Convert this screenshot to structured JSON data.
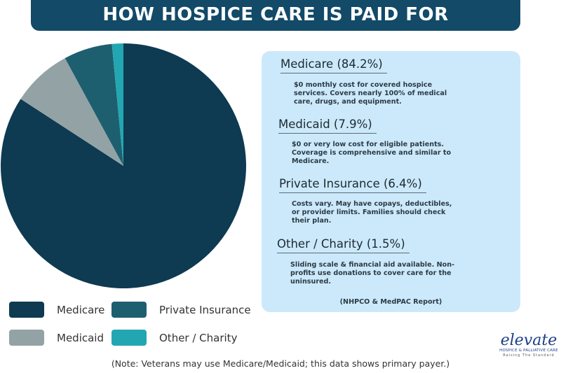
{
  "title": "HOW HOSPICE CARE IS PAID FOR",
  "chart_data": {
    "type": "pie",
    "title": "HOW HOSPICE CARE IS PAID FOR",
    "categories": [
      "Medicare",
      "Medicaid",
      "Private Insurance",
      "Other / Charity"
    ],
    "values": [
      84.2,
      7.9,
      6.4,
      1.5
    ],
    "colors": [
      "#0e3a52",
      "#93a3a5",
      "#1e5f6f",
      "#22a7b2"
    ],
    "start_angle": "top",
    "direction": "clockwise",
    "legend_position": "bottom-left"
  },
  "legend": [
    {
      "label": "Medicare",
      "color": "#0e3a52"
    },
    {
      "label": "Private Insurance",
      "color": "#1e5f6f"
    },
    {
      "label": "Medicaid",
      "color": "#93a3a5"
    },
    {
      "label": "Other / Charity",
      "color": "#22a7b2"
    }
  ],
  "panel": {
    "sections": [
      {
        "title": "Medicare (84.2%)",
        "desc": "$0 monthly cost for covered hospice services. Covers nearly 100% of medical care, drugs, and equipment."
      },
      {
        "title": "Medicaid (7.9%)",
        "desc": "$0 or very low cost for eligible patients. Coverage is comprehensive and similar to Medicare."
      },
      {
        "title": "Private Insurance (6.4%)",
        "desc": "Costs vary. May have copays, deductibles, or provider limits. Families should check their plan."
      },
      {
        "title": "Other / Charity (1.5%)",
        "desc": "Sliding scale & financial aid available. Non-profits use donations to cover care for the uninsured."
      }
    ],
    "source": "(NHPCO & MedPAC Report)"
  },
  "note": "(Note: Veterans may use Medicare/Medicaid; this data shows primary payer.)",
  "logo": {
    "name": "elevate",
    "subtitle": "HOSPICE & PALLIATIVE CARE",
    "tagline": "Raising The Standard"
  }
}
